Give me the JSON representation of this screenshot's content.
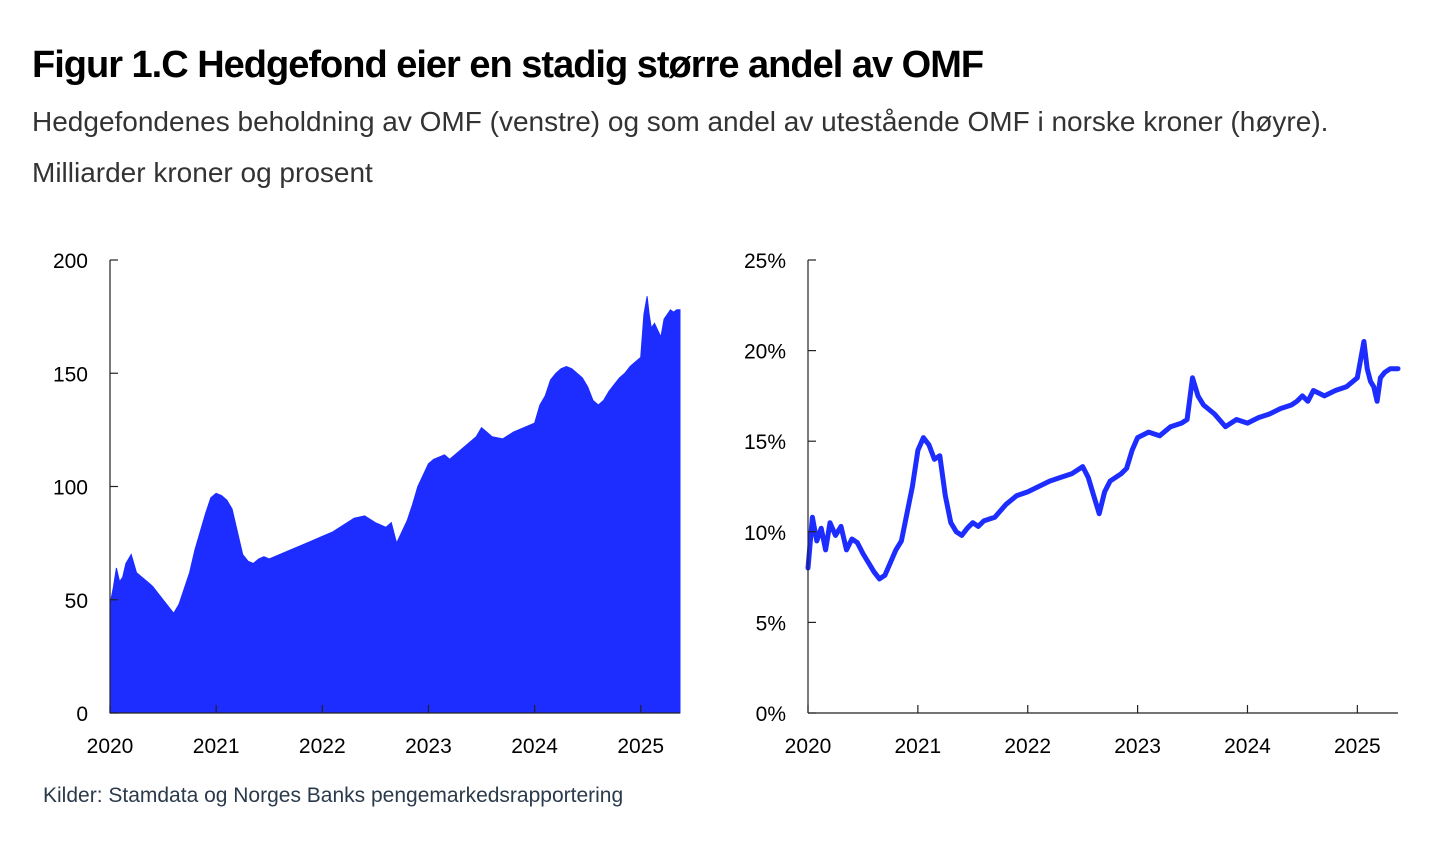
{
  "header": {
    "title": "Figur 1.C Hedgefond eier en stadig større andel av OMF",
    "subtitle": "Hedgefondenes beholdning av OMF (venstre) og som andel av utestående OMF i norske kroner (høyre). Milliarder kroner og prosent"
  },
  "footer": {
    "source": "Kilder: Stamdata og Norges Banks pengemarkedsrapportering"
  },
  "colors": {
    "series": "#1d2dff",
    "axis": "#222222"
  },
  "chart_data": [
    {
      "type": "area",
      "title": "",
      "xlabel": "",
      "ylabel": "",
      "xlim": [
        2020.0,
        2025.37
      ],
      "ylim": [
        0,
        200
      ],
      "x_tick_values": [
        2020,
        2021,
        2022,
        2023,
        2024,
        2025
      ],
      "x_tick_labels": [
        "2020",
        "2021",
        "2022",
        "2023",
        "2024",
        "2025"
      ],
      "y_tick_values": [
        0,
        50,
        100,
        150,
        200
      ],
      "y_tick_labels": [
        "0",
        "50",
        "100",
        "150",
        "200"
      ],
      "series": [
        {
          "name": "Hedgefondenes beholdning av OMF",
          "x": [
            2020.0,
            2020.03,
            2020.06,
            2020.09,
            2020.12,
            2020.15,
            2020.2,
            2020.25,
            2020.3,
            2020.35,
            2020.4,
            2020.45,
            2020.5,
            2020.55,
            2020.6,
            2020.65,
            2020.7,
            2020.75,
            2020.8,
            2020.85,
            2020.9,
            2020.95,
            2021.0,
            2021.05,
            2021.1,
            2021.15,
            2021.2,
            2021.25,
            2021.3,
            2021.35,
            2021.4,
            2021.45,
            2021.5,
            2021.55,
            2021.6,
            2021.7,
            2021.8,
            2021.9,
            2022.0,
            2022.1,
            2022.2,
            2022.3,
            2022.4,
            2022.5,
            2022.55,
            2022.6,
            2022.65,
            2022.7,
            2022.75,
            2022.8,
            2022.85,
            2022.9,
            2022.95,
            2023.0,
            2023.05,
            2023.1,
            2023.15,
            2023.2,
            2023.3,
            2023.4,
            2023.45,
            2023.5,
            2023.55,
            2023.6,
            2023.7,
            2023.8,
            2023.9,
            2024.0,
            2024.05,
            2024.1,
            2024.15,
            2024.2,
            2024.25,
            2024.3,
            2024.35,
            2024.4,
            2024.45,
            2024.5,
            2024.55,
            2024.6,
            2024.65,
            2024.7,
            2024.75,
            2024.8,
            2024.85,
            2024.9,
            2024.95,
            2025.0,
            2025.03,
            2025.06,
            2025.08,
            2025.1,
            2025.13,
            2025.16,
            2025.19,
            2025.22,
            2025.25,
            2025.28,
            2025.31,
            2025.34,
            2025.37
          ],
          "values": [
            48,
            55,
            64,
            58,
            60,
            66,
            70,
            62,
            60,
            58,
            56,
            53,
            50,
            47,
            44,
            48,
            55,
            62,
            72,
            80,
            88,
            95,
            97,
            96,
            94,
            90,
            80,
            70,
            67,
            66,
            68,
            69,
            68,
            69,
            70,
            72,
            74,
            76,
            78,
            80,
            83,
            86,
            87,
            84,
            83,
            82,
            84,
            75,
            80,
            85,
            92,
            100,
            105,
            110,
            112,
            113,
            114,
            112,
            116,
            120,
            122,
            126,
            124,
            122,
            121,
            124,
            126,
            128,
            136,
            140,
            147,
            150,
            152,
            153,
            152,
            150,
            148,
            144,
            138,
            136,
            138,
            142,
            145,
            148,
            150,
            153,
            155,
            157,
            176,
            184,
            176,
            170,
            172,
            169,
            166,
            174,
            176,
            178,
            177,
            178,
            178
          ]
        }
      ]
    },
    {
      "type": "line",
      "title": "",
      "xlabel": "",
      "ylabel": "",
      "xlim": [
        2020.0,
        2025.37
      ],
      "ylim": [
        0,
        25
      ],
      "x_tick_values": [
        2020,
        2021,
        2022,
        2023,
        2024,
        2025
      ],
      "x_tick_labels": [
        "2020",
        "2021",
        "2022",
        "2023",
        "2024",
        "2025"
      ],
      "y_tick_values": [
        0,
        5,
        10,
        15,
        20,
        25
      ],
      "y_tick_labels": [
        "0%",
        "5%",
        "10%",
        "15%",
        "20%",
        "25%"
      ],
      "series": [
        {
          "name": "Andel av utestående OMF i norske kroner",
          "x": [
            2020.0,
            2020.04,
            2020.08,
            2020.12,
            2020.16,
            2020.2,
            2020.25,
            2020.3,
            2020.35,
            2020.4,
            2020.45,
            2020.5,
            2020.55,
            2020.6,
            2020.65,
            2020.7,
            2020.75,
            2020.8,
            2020.85,
            2020.9,
            2020.95,
            2021.0,
            2021.05,
            2021.1,
            2021.15,
            2021.2,
            2021.25,
            2021.3,
            2021.35,
            2021.4,
            2021.45,
            2021.5,
            2021.55,
            2021.6,
            2021.7,
            2021.8,
            2021.9,
            2022.0,
            2022.1,
            2022.2,
            2022.3,
            2022.4,
            2022.5,
            2022.55,
            2022.6,
            2022.65,
            2022.7,
            2022.75,
            2022.8,
            2022.85,
            2022.9,
            2022.95,
            2023.0,
            2023.1,
            2023.2,
            2023.3,
            2023.4,
            2023.45,
            2023.5,
            2023.55,
            2023.6,
            2023.7,
            2023.8,
            2023.9,
            2024.0,
            2024.1,
            2024.2,
            2024.3,
            2024.4,
            2024.45,
            2024.5,
            2024.55,
            2024.6,
            2024.7,
            2024.8,
            2024.9,
            2025.0,
            2025.03,
            2025.06,
            2025.09,
            2025.12,
            2025.15,
            2025.18,
            2025.21,
            2025.25,
            2025.3,
            2025.37
          ],
          "values": [
            8.0,
            10.8,
            9.5,
            10.2,
            9.0,
            10.5,
            9.8,
            10.3,
            9.0,
            9.6,
            9.4,
            8.8,
            8.3,
            7.8,
            7.4,
            7.6,
            8.3,
            9.0,
            9.5,
            11.0,
            12.5,
            14.5,
            15.2,
            14.8,
            14.0,
            14.2,
            12.0,
            10.5,
            10.0,
            9.8,
            10.2,
            10.5,
            10.3,
            10.6,
            10.8,
            11.5,
            12.0,
            12.2,
            12.5,
            12.8,
            13.0,
            13.2,
            13.6,
            13.0,
            12.0,
            11.0,
            12.2,
            12.8,
            13.0,
            13.2,
            13.5,
            14.5,
            15.2,
            15.5,
            15.3,
            15.8,
            16.0,
            16.2,
            18.5,
            17.5,
            17.0,
            16.5,
            15.8,
            16.2,
            16.0,
            16.3,
            16.5,
            16.8,
            17.0,
            17.2,
            17.5,
            17.2,
            17.8,
            17.5,
            17.8,
            18.0,
            18.5,
            19.5,
            20.5,
            19.0,
            18.3,
            18.0,
            17.2,
            18.5,
            18.8,
            19.0,
            19.0
          ]
        }
      ]
    }
  ]
}
